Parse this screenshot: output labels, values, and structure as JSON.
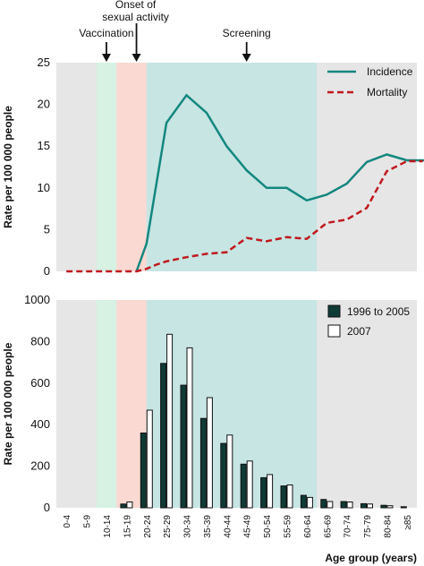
{
  "colors": {
    "panel_bg": "#e6e6e6",
    "vaccination": "#d7f1e3",
    "onset": "#f9d9d2",
    "screening": "#c6e5e3",
    "incidence": "#14877f",
    "mortality": "#c0191e",
    "bar_dark": "#0f3b35",
    "bar_light": "#ffffff"
  },
  "annotations": {
    "vaccination": "Vaccination",
    "onset_line1": "Onset of",
    "onset_line2": "sexual activity",
    "screening": "Screening"
  },
  "chart_data": [
    {
      "type": "line",
      "xlabel": "",
      "ylabel": "Rate per 100 000 people",
      "ylim": [
        0,
        25
      ],
      "yticks": [
        0,
        5,
        10,
        15,
        20,
        25
      ],
      "grid": false,
      "legend_position": "top-right",
      "series": [
        {
          "name": "Incidence",
          "x": [
            3.5,
            4,
            5,
            6,
            7,
            8,
            9,
            10,
            11,
            12,
            13,
            14,
            15,
            16,
            17,
            18,
            18.8
          ],
          "values": [
            0,
            3.3,
            17.8,
            21.1,
            19,
            15,
            12.1,
            10,
            10,
            8.5,
            9.2,
            10.5,
            13.1,
            14,
            13.3,
            13.3,
            13.3
          ]
        },
        {
          "name": "Mortality",
          "x": [
            0,
            3,
            3.5,
            4,
            4.5,
            5,
            6,
            7,
            8,
            9,
            10,
            11,
            12,
            13,
            14,
            15,
            16,
            17,
            17.8
          ],
          "values": [
            0,
            0,
            0,
            0.3,
            0.8,
            1.2,
            1.7,
            2.1,
            2.3,
            4,
            3.6,
            4.1,
            3.9,
            5.8,
            6.2,
            7.6,
            12,
            13.2,
            13.2
          ]
        }
      ]
    },
    {
      "type": "bar",
      "xlabel": "Age group (years)",
      "ylabel": "Rate per 100 000 people",
      "ylim": [
        0,
        1000
      ],
      "yticks": [
        0,
        200,
        400,
        600,
        800,
        1000
      ],
      "grid": false,
      "legend_position": "top-right",
      "categories": [
        "0-4",
        "5-9",
        "10-14",
        "15-19",
        "20-24",
        "25-29",
        "30-34",
        "35-39",
        "40-44",
        "45-49",
        "50-54",
        "55-59",
        "60-64",
        "65-69",
        "70-74",
        "75-79",
        "80-84",
        "≥85"
      ],
      "series": [
        {
          "name": "1996 to 2005",
          "values": [
            0,
            0,
            0,
            18,
            360,
            695,
            590,
            430,
            310,
            210,
            145,
            105,
            60,
            40,
            30,
            20,
            12,
            5
          ]
        },
        {
          "name": "2007",
          "values": [
            0,
            0,
            0,
            28,
            470,
            835,
            770,
            530,
            350,
            225,
            160,
            110,
            50,
            30,
            28,
            18,
            10,
            0
          ]
        }
      ]
    }
  ]
}
